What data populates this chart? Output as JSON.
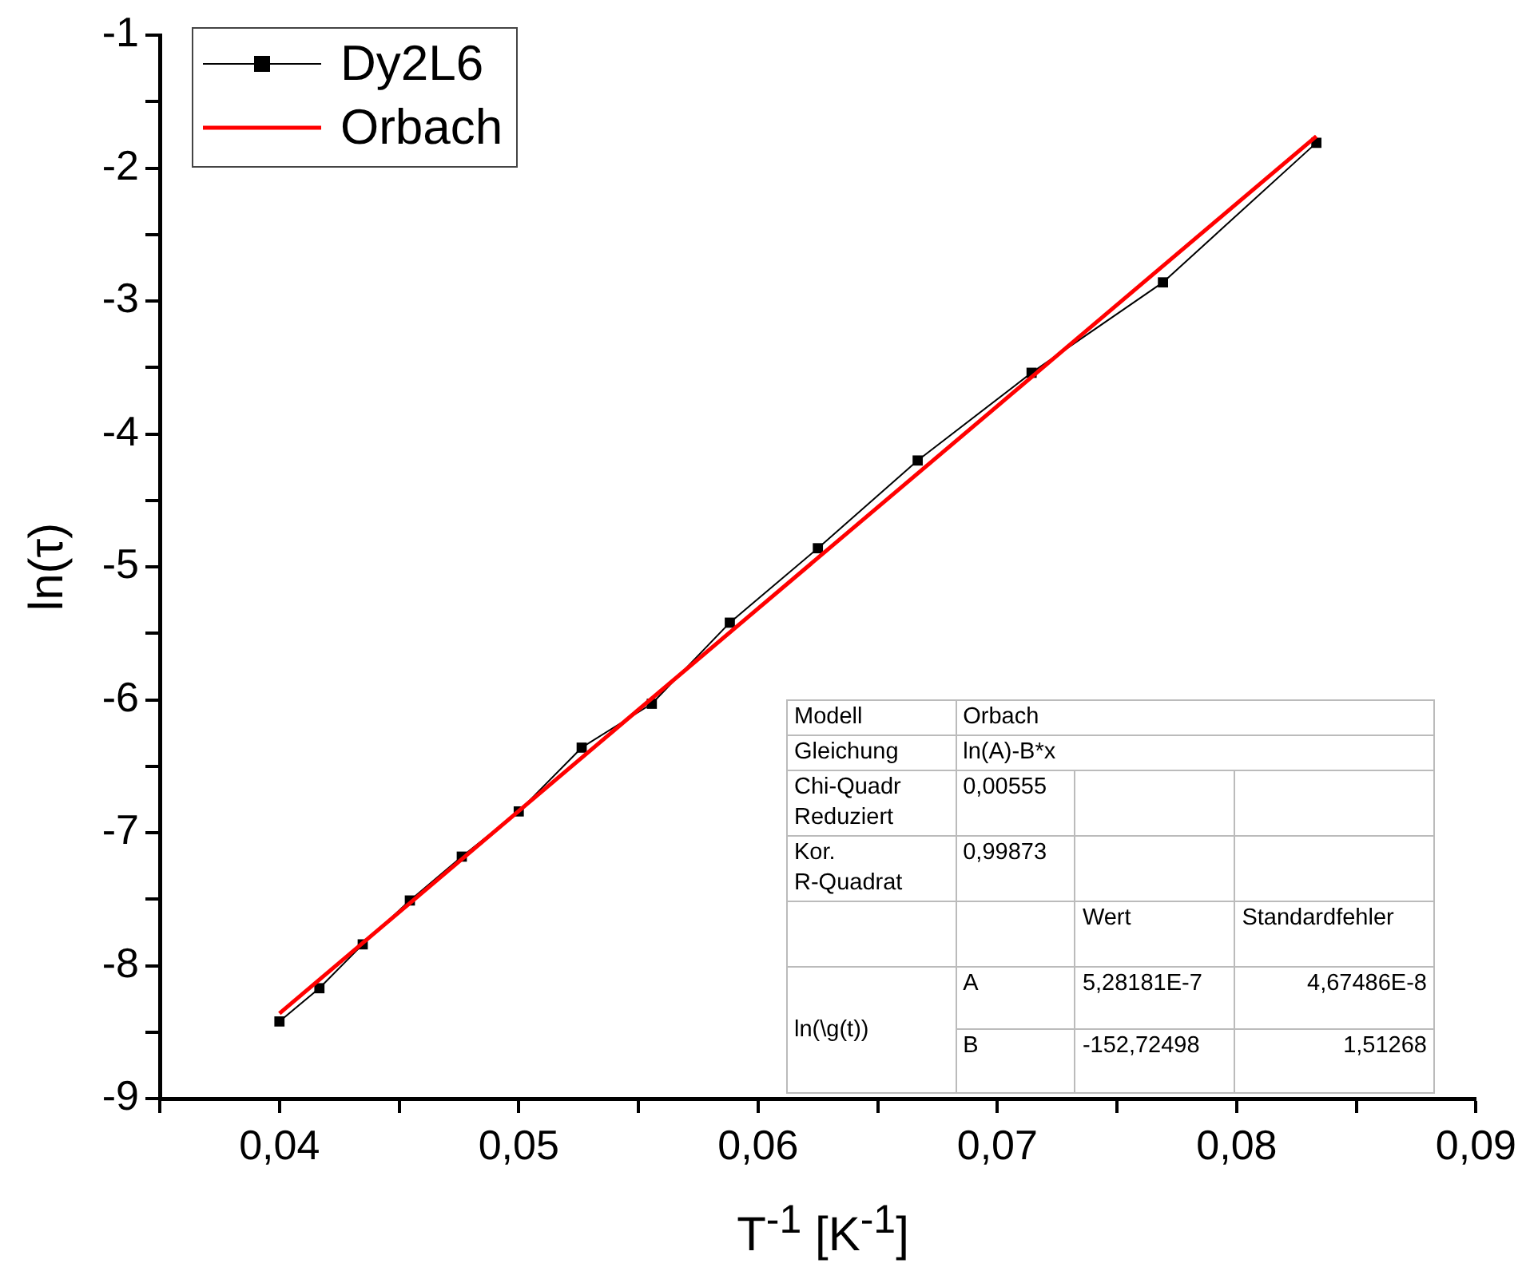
{
  "chart_data": {
    "type": "line",
    "xlabel": "T$^{-1}$ [K$^{-1}$]",
    "ylabel": "ln(τ)",
    "xlim": [
      0.035,
      0.09
    ],
    "xticks": [
      {
        "value": 0.035,
        "label": null
      },
      {
        "value": 0.04,
        "label": "0,04"
      },
      {
        "value": 0.045,
        "label": null
      },
      {
        "value": 0.05,
        "label": "0,05"
      },
      {
        "value": 0.055,
        "label": null
      },
      {
        "value": 0.06,
        "label": "0,06"
      },
      {
        "value": 0.065,
        "label": null
      },
      {
        "value": 0.07,
        "label": "0,07"
      },
      {
        "value": 0.075,
        "label": null
      },
      {
        "value": 0.08,
        "label": "0,08"
      },
      {
        "value": 0.085,
        "label": null
      },
      {
        "value": 0.09,
        "label": "0,09"
      }
    ],
    "ylim": [
      -9,
      -1
    ],
    "yticks": [
      -9,
      {
        "value": -8.5,
        "label": null
      },
      -8,
      {
        "value": -7.5,
        "label": null
      },
      -7,
      {
        "value": -6.5,
        "label": null
      },
      -6,
      {
        "value": -5.5,
        "label": null
      },
      -5,
      {
        "value": -4.5,
        "label": null
      },
      -4,
      {
        "value": -3.5,
        "label": null
      },
      -3,
      {
        "value": -2.5,
        "label": null
      },
      -2,
      {
        "value": -1.5,
        "label": null
      },
      -1
    ],
    "grid": false,
    "legend": "top left",
    "series": [
      {
        "name": "Dy2L6",
        "color": "#000000",
        "marker": "square",
        "x": [
          0.04,
          0.04167,
          0.04348,
          0.04545,
          0.04762,
          0.05,
          0.05263,
          0.05556,
          0.05882,
          0.0625,
          0.06667,
          0.07143,
          0.07692,
          0.08333
        ],
        "values": [
          -8.42,
          -8.17,
          -7.84,
          -7.51,
          -7.18,
          -6.84,
          -6.36,
          -6.03,
          -5.42,
          -4.86,
          -4.2,
          -3.54,
          -2.86,
          -1.81
        ]
      },
      {
        "name": "Orbach",
        "color": "#ff0000",
        "marker": "none",
        "x": [
          0.04,
          0.08333
        ],
        "values": [
          -8.36,
          -1.76
        ]
      }
    ],
    "annotations": [
      "Modell",
      "Orbach",
      "Gleichung",
      "ln(A)-B*x",
      "Chi-Quadr\nReduziert",
      "0,00555",
      "Kor.\nR-Quadrat",
      "0,99873",
      "Wert",
      "Standardfehler",
      "ln(\\g(t))",
      "A",
      "5,28181E-7",
      "4,67486E-8",
      "B",
      "-152,72498",
      "1,51268"
    ]
  }
}
